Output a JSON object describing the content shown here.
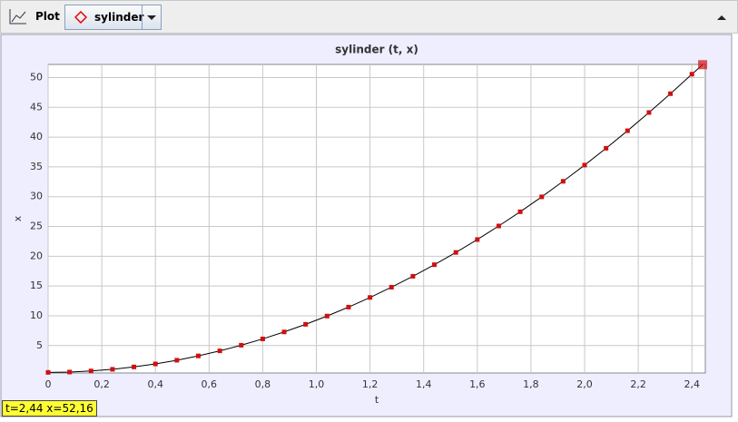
{
  "toolbar": {
    "plot_label": "Plot",
    "selected": "sylinder"
  },
  "status": "t=2,44  x=52,16",
  "chart_data": {
    "type": "line",
    "title": "sylinder (t, x)",
    "x_label": "t",
    "y_label": "x",
    "x": [
      0,
      0.08,
      0.16,
      0.24,
      0.32,
      0.4,
      0.48,
      0.56,
      0.64,
      0.72,
      0.8,
      0.88,
      0.96,
      1.04,
      1.12,
      1.2,
      1.28,
      1.36,
      1.44,
      1.52,
      1.6,
      1.68,
      1.76,
      1.84,
      1.92,
      2.0,
      2.08,
      2.16,
      2.24,
      2.32,
      2.4,
      2.44
    ],
    "series": [
      {
        "name": "x",
        "color": "#d01010",
        "line_color": "#000000",
        "values": [
          0.5,
          0.56,
          0.74,
          1.02,
          1.42,
          1.92,
          2.54,
          3.27,
          4.11,
          5.06,
          6.12,
          7.29,
          8.57,
          9.96,
          11.46,
          13.08,
          14.8,
          16.64,
          18.58,
          20.64,
          22.8,
          25.08,
          27.47,
          29.97,
          32.58,
          35.3,
          38.13,
          41.07,
          44.13,
          47.29,
          50.56,
          52.16
        ]
      }
    ],
    "xlim": [
      0,
      2.45
    ],
    "ylim": [
      0.4,
      52.2
    ],
    "xticks": [
      0,
      {
        "value": 0.2,
        "label": "0,2"
      },
      {
        "value": 0.4,
        "label": "0,4"
      },
      {
        "value": 0.6,
        "label": "0,6"
      },
      {
        "value": 0.8,
        "label": "0,8"
      },
      {
        "value": 1.0,
        "label": "1,0"
      },
      {
        "value": 1.2,
        "label": "1,2"
      },
      {
        "value": 1.4,
        "label": "1,4"
      },
      {
        "value": 1.6,
        "label": "1,6"
      },
      {
        "value": 1.8,
        "label": "1,8"
      },
      {
        "value": 2.0,
        "label": "2,0"
      },
      {
        "value": 2.2,
        "label": "2,2"
      },
      {
        "value": 2.4,
        "label": "2,4"
      }
    ],
    "yticks": [
      5,
      10,
      15,
      20,
      25,
      30,
      35,
      40,
      45,
      50
    ],
    "grid": true
  }
}
